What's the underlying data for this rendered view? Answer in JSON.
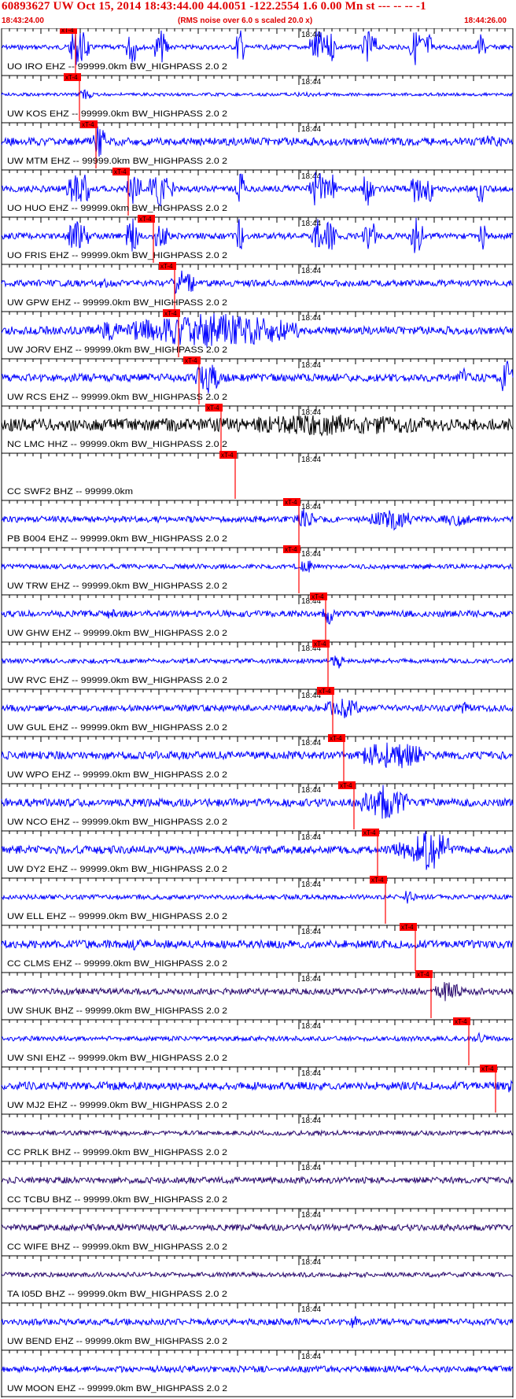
{
  "header": {
    "title": "60893627 UW Oct 15, 2014 18:43:44.00   44.0051 -122.2554  1.6 0.00 Mn st --- -- --  -1",
    "start_time": "18:43:24.00",
    "note": "(RMS noise over 6.0 s scaled 20.0 x)",
    "end_time": "18:44:26.00"
  },
  "time_label": "18:44",
  "pick_label": "xT-4",
  "colors": {
    "blue": "#0000ff",
    "black": "#000000",
    "purple": "#2a0a6e",
    "red": "#ff0000",
    "axis": "#000000"
  },
  "traces": [
    {
      "label": "UO IRO EHZ -- 99999.0km BW_HIGHPASS  2.0  2",
      "color": "blue"
    },
    {
      "label": "UW KOS EHZ -- 99999.0km BW_HIGHPASS  2.0  2",
      "color": "blue"
    },
    {
      "label": "UW MTM EHZ -- 99999.0km BW_HIGHPASS  2.0  2",
      "color": "blue"
    },
    {
      "label": "UO HUO EHZ -- 99999.0km BW_HIGHPASS  2.0  2",
      "color": "blue"
    },
    {
      "label": "UO FRIS EHZ -- 99999.0km BW_HIGHPASS  2.0  2",
      "color": "blue"
    },
    {
      "label": "UW GPW EHZ -- 99999.0km BW_HIGHPASS  2.0  2",
      "color": "blue"
    },
    {
      "label": "UW JORV EHZ -- 99999.0km BW_HIGHPASS  2.0  2",
      "color": "blue"
    },
    {
      "label": "UW RCS EHZ -- 99999.0km BW_HIGHPASS  2.0  2",
      "color": "blue"
    },
    {
      "label": "NC LMC HHZ -- 99999.0km BW_HIGHPASS  2.0  2",
      "color": "black"
    },
    {
      "label": "CC SWF2 BHZ -- 99999.0km",
      "color": "blue"
    },
    {
      "label": "PB B004 EHZ -- 99999.0km BW_HIGHPASS  2.0  2",
      "color": "blue"
    },
    {
      "label": "UW TRW EHZ -- 99999.0km BW_HIGHPASS  2.0  2",
      "color": "blue"
    },
    {
      "label": "UW GHW EHZ -- 99999.0km BW_HIGHPASS  2.0  2",
      "color": "blue"
    },
    {
      "label": "UW RVC EHZ -- 99999.0km BW_HIGHPASS  2.0  2",
      "color": "blue"
    },
    {
      "label": "UW GUL EHZ -- 99999.0km BW_HIGHPASS  2.0  2",
      "color": "blue"
    },
    {
      "label": "UW WPO EHZ -- 99999.0km BW_HIGHPASS  2.0  2",
      "color": "blue"
    },
    {
      "label": "UW NCO EHZ -- 99999.0km BW_HIGHPASS  2.0  2",
      "color": "blue"
    },
    {
      "label": "UW DY2 EHZ -- 99999.0km BW_HIGHPASS  2.0  2",
      "color": "blue"
    },
    {
      "label": "UW ELL EHZ -- 99999.0km BW_HIGHPASS  2.0  2",
      "color": "blue"
    },
    {
      "label": "CC CLMS EHZ -- 99999.0km BW_HIGHPASS  2.0  2",
      "color": "blue"
    },
    {
      "label": "UW SHUK BHZ -- 99999.0km BW_HIGHPASS  2.0  2",
      "color": "purple"
    },
    {
      "label": "UW SNI EHZ -- 99999.0km BW_HIGHPASS  2.0  2",
      "color": "blue"
    },
    {
      "label": "UW MJ2 EHZ -- 99999.0km BW_HIGHPASS  2.0  2",
      "color": "blue"
    },
    {
      "label": "CC PRLK BHZ -- 99999.0km BW_HIGHPASS  2.0  2",
      "color": "purple"
    },
    {
      "label": "CC TCBU BHZ -- 99999.0km BW_HIGHPASS  2.0  2",
      "color": "purple"
    },
    {
      "label": "CC WIFE BHZ -- 99999.0km BW_HIGHPASS  2.0  2",
      "color": "purple"
    },
    {
      "label": "TA I05D BHZ -- 99999.0km BW_HIGHPASS  2.0  2",
      "color": "purple"
    },
    {
      "label": "UW BEND EHZ -- 99999.0km BW_HIGHPASS  2.0  2",
      "color": "blue"
    },
    {
      "label": "UW MOON EHZ -- 99999.0km BW_HIGHPASS  2.0  2",
      "color": "blue"
    }
  ]
}
